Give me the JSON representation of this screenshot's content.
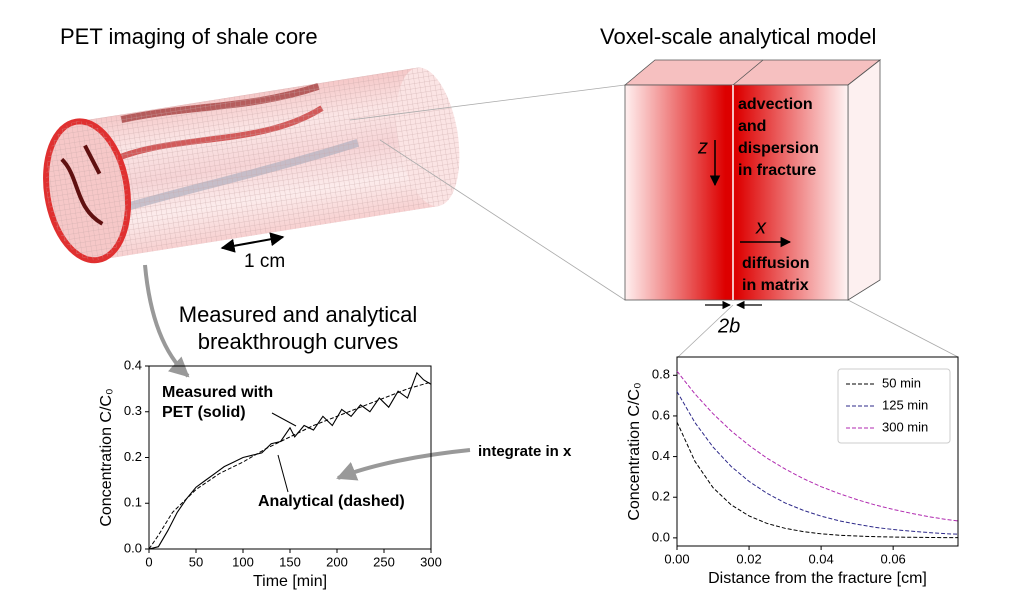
{
  "labels": {
    "pet_title": "PET imaging of shale core",
    "model_title": "Voxel-scale analytical model",
    "scale_bar": "1 cm",
    "z_axis": "z",
    "x_axis": "x",
    "fracture_text": [
      "advection",
      "and",
      "dispersion",
      "in fracture"
    ],
    "matrix_text": [
      "diffusion",
      "in matrix"
    ],
    "half_aperture": "2b",
    "breakthrough_title": [
      "Measured and analytical",
      "breakthrough curves"
    ],
    "integrate": "integrate in x"
  },
  "chart_data": [
    {
      "type": "line",
      "xlabel": "Time [min]",
      "ylabel": "Concentration C/C₀",
      "xlim": [
        0,
        300
      ],
      "ylim": [
        0,
        0.4
      ],
      "xticks": [
        0,
        50,
        100,
        150,
        200,
        250,
        300
      ],
      "yticks": [
        {
          "value": 0,
          "label": "0.0"
        },
        0.1,
        0.2,
        0.3,
        0.4
      ],
      "annotations": [
        "Measured with",
        "PET (solid)",
        "Analytical (dashed)"
      ],
      "series": [
        {
          "color": "#000000",
          "linestyle": "solid",
          "x": [
            0,
            10,
            20,
            30,
            40,
            50,
            60,
            70,
            80,
            90,
            100,
            110,
            120,
            130,
            140,
            150,
            155,
            165,
            175,
            185,
            195,
            205,
            215,
            225,
            235,
            245,
            255,
            265,
            275,
            285,
            292,
            300
          ],
          "values": [
            0,
            0.005,
            0.04,
            0.08,
            0.11,
            0.135,
            0.15,
            0.165,
            0.18,
            0.19,
            0.2,
            0.205,
            0.21,
            0.23,
            0.235,
            0.265,
            0.245,
            0.27,
            0.26,
            0.29,
            0.27,
            0.305,
            0.29,
            0.315,
            0.3,
            0.33,
            0.31,
            0.345,
            0.33,
            0.385,
            0.37,
            0.36
          ]
        },
        {
          "color": "#000000",
          "linestyle": "dashed",
          "x": [
            0,
            10,
            25,
            50,
            75,
            100,
            125,
            150,
            175,
            200,
            225,
            250,
            275,
            300
          ],
          "values": [
            0,
            0.03,
            0.08,
            0.13,
            0.165,
            0.19,
            0.22,
            0.245,
            0.27,
            0.29,
            0.31,
            0.33,
            0.35,
            0.365
          ]
        }
      ]
    },
    {
      "type": "line",
      "xlabel": "Distance from the fracture [cm]",
      "ylabel": "Concentration C/C₀",
      "xlim": [
        0,
        0.078
      ],
      "ylim": [
        -0.04,
        0.89
      ],
      "xticks": [
        {
          "value": 0,
          "label": "0.00"
        },
        0.02,
        0.04,
        0.06
      ],
      "yticks": [
        {
          "value": 0,
          "label": "0.0"
        },
        0.2,
        0.4,
        0.6,
        0.8
      ],
      "legend": "upper right",
      "series": [
        {
          "name": "50 min",
          "color": "#000000",
          "linestyle": "dashed",
          "x": [
            0,
            0.005,
            0.01,
            0.015,
            0.02,
            0.025,
            0.03,
            0.035,
            0.04,
            0.045,
            0.05,
            0.055,
            0.06,
            0.065,
            0.07,
            0.075,
            0.078
          ],
          "values": [
            0.57,
            0.376,
            0.247,
            0.163,
            0.108,
            0.071,
            0.047,
            0.031,
            0.02,
            0.013,
            0.009,
            0.006,
            0.004,
            0.003,
            0.002,
            0.001,
            0.001
          ]
        },
        {
          "name": "125 min",
          "color": "#2e2a8a",
          "linestyle": "dashed",
          "x": [
            0,
            0.005,
            0.01,
            0.015,
            0.02,
            0.025,
            0.03,
            0.035,
            0.04,
            0.045,
            0.05,
            0.055,
            0.06,
            0.065,
            0.07,
            0.075,
            0.078
          ],
          "values": [
            0.72,
            0.567,
            0.447,
            0.352,
            0.278,
            0.219,
            0.172,
            0.136,
            0.107,
            0.084,
            0.067,
            0.052,
            0.041,
            0.033,
            0.026,
            0.02,
            0.018
          ]
        },
        {
          "name": "300 min",
          "color": "#b02ab0",
          "linestyle": "dashed",
          "x": [
            0,
            0.005,
            0.01,
            0.015,
            0.02,
            0.025,
            0.03,
            0.035,
            0.04,
            0.045,
            0.05,
            0.055,
            0.06,
            0.065,
            0.07,
            0.075,
            0.078
          ],
          "values": [
            0.82,
            0.708,
            0.611,
            0.527,
            0.455,
            0.392,
            0.339,
            0.292,
            0.252,
            0.218,
            0.188,
            0.162,
            0.14,
            0.121,
            0.104,
            0.09,
            0.083
          ]
        }
      ]
    }
  ]
}
